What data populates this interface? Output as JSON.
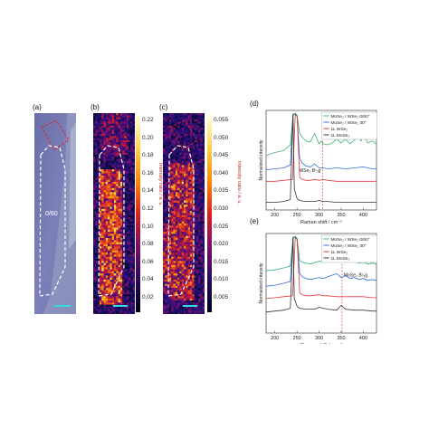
{
  "panels": {
    "a": {
      "label": "(a)",
      "region_label": "0/60"
    },
    "b": {
      "label": "(b)",
      "colorbar_ticks": [
        "0.22",
        "0.20",
        "0.18",
        "0.16",
        "0.14",
        "0.12",
        "0.10",
        "0.08",
        "0.06",
        "0.04",
        "0.02"
      ],
      "colorbar_title": "Intensity ratio / a. u."
    },
    "c": {
      "label": "(c)",
      "colorbar_ticks": [
        "0.055",
        "0.050",
        "0.045",
        "0.040",
        "0.035",
        "0.030",
        "0.025",
        "0.020",
        "0.015",
        "0.010",
        "0.005"
      ],
      "colorbar_title": "Intensity ratio / a. u."
    },
    "d": {
      "label": "(d)"
    },
    "e": {
      "label": "(e)"
    }
  },
  "chart_data": [
    {
      "type": "line",
      "panel": "d",
      "xlabel": "Raman shift / cm⁻¹",
      "ylabel": "Normalized intensity",
      "xlim": [
        180,
        430
      ],
      "xticks": [
        "200",
        "250",
        "300",
        "350",
        "400"
      ],
      "annotation": "WSe₂ B¹₂g",
      "legend": [
        "MoSe₂ / WSe₂ 0/60°",
        "MoSe₂ / WSe₂ 30°",
        "1L WSe₂",
        "1L MoSe₂"
      ],
      "colors": [
        "#3cb371",
        "#2f6fd6",
        "#e23b3b",
        "#333333"
      ],
      "series": [
        {
          "name": "MoSe₂ / WSe₂ 0/60°",
          "x": [
            180,
            200,
            220,
            235,
            241,
            246,
            250,
            256,
            262,
            270,
            280,
            290,
            300,
            305,
            310,
            320,
            330,
            340,
            350,
            360,
            370,
            380,
            390,
            395,
            400,
            410,
            420,
            430
          ],
          "y": [
            0.55,
            0.58,
            0.6,
            0.66,
            0.98,
            0.99,
            0.97,
            0.78,
            0.74,
            0.7,
            0.69,
            0.78,
            0.67,
            0.7,
            0.67,
            0.66,
            0.68,
            0.72,
            0.68,
            0.72,
            0.67,
            0.71,
            0.74,
            0.7,
            0.78,
            0.68,
            0.7,
            0.67
          ]
        },
        {
          "name": "MoSe₂ / WSe₂ 30°",
          "x": [
            180,
            200,
            220,
            235,
            241,
            246,
            250,
            256,
            262,
            270,
            280,
            290,
            300,
            310,
            320,
            340,
            360,
            380,
            400,
            420,
            430
          ],
          "y": [
            0.4,
            0.41,
            0.42,
            0.45,
            0.97,
            0.98,
            0.96,
            0.52,
            0.47,
            0.44,
            0.43,
            0.46,
            0.42,
            0.42,
            0.41,
            0.42,
            0.41,
            0.42,
            0.43,
            0.41,
            0.41
          ]
        },
        {
          "name": "1L WSe₂",
          "x": [
            180,
            200,
            220,
            240,
            246,
            250,
            256,
            262,
            270,
            280,
            290,
            300,
            310,
            320,
            340,
            360,
            380,
            400,
            420,
            430
          ],
          "y": [
            0.28,
            0.28,
            0.29,
            0.3,
            0.97,
            0.96,
            0.32,
            0.3,
            0.29,
            0.29,
            0.3,
            0.29,
            0.3,
            0.29,
            0.28,
            0.28,
            0.28,
            0.28,
            0.28,
            0.28
          ]
        },
        {
          "name": "1L MoSe₂",
          "x": [
            180,
            200,
            220,
            235,
            241,
            244,
            250,
            256,
            270,
            290,
            300,
            310,
            320,
            340,
            360,
            380,
            400,
            420,
            430
          ],
          "y": [
            0.06,
            0.06,
            0.07,
            0.09,
            0.98,
            0.2,
            0.1,
            0.08,
            0.07,
            0.07,
            0.08,
            0.07,
            0.07,
            0.06,
            0.06,
            0.06,
            0.06,
            0.06,
            0.06
          ]
        }
      ]
    },
    {
      "type": "line",
      "panel": "e",
      "xlabel": "Raman shift / cm⁻¹",
      "ylabel": "Normalized intensity",
      "xlim": [
        180,
        430
      ],
      "xticks": [
        "200",
        "250",
        "300",
        "350",
        "400"
      ],
      "annotation": "MoSe₂ B¹₂g",
      "legend": [
        "MoSe₂ / WSe₂ 0/60°",
        "MoSe₂ / WSe₂ 30°",
        "1L WSe₂",
        "1L MoSe₂"
      ],
      "colors": [
        "#3cb371",
        "#2f6fd6",
        "#e23b3b",
        "#333333"
      ],
      "series": [
        {
          "name": "MoSe₂ / WSe₂ 0/60°",
          "x": [
            180,
            200,
            220,
            235,
            241,
            246,
            250,
            256,
            262,
            270,
            280,
            300,
            310,
            320,
            340,
            350,
            360,
            370,
            380,
            390,
            400,
            410,
            420,
            430
          ],
          "y": [
            0.63,
            0.64,
            0.66,
            0.68,
            0.98,
            0.99,
            0.97,
            0.74,
            0.72,
            0.71,
            0.7,
            0.73,
            0.72,
            0.74,
            0.76,
            0.73,
            0.74,
            0.72,
            0.73,
            0.71,
            0.72,
            0.7,
            0.71,
            0.7
          ]
        },
        {
          "name": "MoSe₂ / WSe₂ 30°",
          "x": [
            180,
            200,
            220,
            235,
            241,
            246,
            250,
            256,
            262,
            270,
            280,
            300,
            310,
            320,
            340,
            350,
            360,
            370,
            380,
            390,
            400,
            410,
            420,
            430
          ],
          "y": [
            0.47,
            0.48,
            0.5,
            0.52,
            0.97,
            0.98,
            0.96,
            0.6,
            0.57,
            0.55,
            0.54,
            0.56,
            0.55,
            0.57,
            0.6,
            0.56,
            0.58,
            0.55,
            0.56,
            0.54,
            0.55,
            0.53,
            0.54,
            0.53
          ]
        },
        {
          "name": "1L WSe₂",
          "x": [
            180,
            200,
            220,
            240,
            246,
            250,
            256,
            262,
            270,
            280,
            300,
            310,
            320,
            340,
            360,
            380,
            400,
            420,
            430
          ],
          "y": [
            0.34,
            0.35,
            0.36,
            0.37,
            0.97,
            0.96,
            0.4,
            0.38,
            0.37,
            0.37,
            0.38,
            0.37,
            0.37,
            0.36,
            0.36,
            0.36,
            0.36,
            0.35,
            0.35
          ]
        },
        {
          "name": "1L MoSe₂",
          "x": [
            180,
            200,
            220,
            235,
            241,
            244,
            250,
            256,
            270,
            290,
            300,
            320,
            340,
            350,
            360,
            380,
            400,
            420,
            430
          ],
          "y": [
            0.2,
            0.21,
            0.22,
            0.24,
            0.98,
            0.34,
            0.26,
            0.24,
            0.23,
            0.23,
            0.25,
            0.23,
            0.22,
            0.27,
            0.23,
            0.22,
            0.22,
            0.21,
            0.21
          ]
        }
      ]
    }
  ]
}
